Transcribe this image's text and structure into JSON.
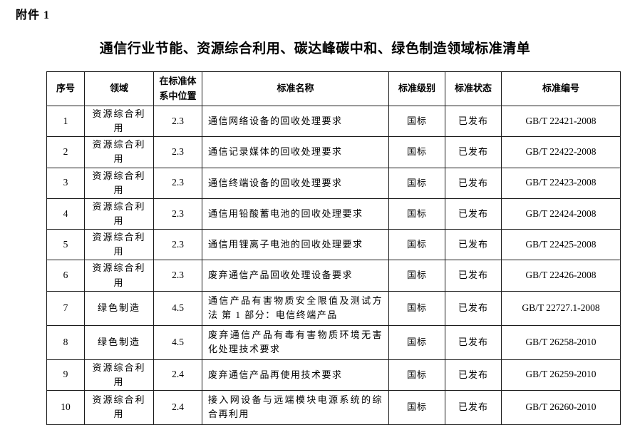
{
  "page": {
    "attachment_label": "附件 1",
    "title": "通信行业节能、资源综合利用、碳达峰碳中和、绿色制造领域标准清单"
  },
  "colors": {
    "background": "#ffffff",
    "text": "#000000",
    "table_border": "#1a1a1a"
  },
  "table": {
    "headers": [
      "序号",
      "领域",
      "在标准体系中位置",
      "标准名称",
      "标准级别",
      "标准状态",
      "标准编号"
    ],
    "rows": [
      {
        "no": "1",
        "field": "资源综合利用",
        "position": "2.3",
        "name": "通信网络设备的回收处理要求",
        "level": "国标",
        "status": "已发布",
        "code": "GB/T 22421-2008",
        "tall": false
      },
      {
        "no": "2",
        "field": "资源综合利用",
        "position": "2.3",
        "name": "通信记录媒体的回收处理要求",
        "level": "国标",
        "status": "已发布",
        "code": "GB/T 22422-2008",
        "tall": false
      },
      {
        "no": "3",
        "field": "资源综合利用",
        "position": "2.3",
        "name": "通信终端设备的回收处理要求",
        "level": "国标",
        "status": "已发布",
        "code": "GB/T 22423-2008",
        "tall": false
      },
      {
        "no": "4",
        "field": "资源综合利用",
        "position": "2.3",
        "name": "通信用铅酸蓄电池的回收处理要求",
        "level": "国标",
        "status": "已发布",
        "code": "GB/T 22424-2008",
        "tall": false
      },
      {
        "no": "5",
        "field": "资源综合利用",
        "position": "2.3",
        "name": "通信用锂离子电池的回收处理要求",
        "level": "国标",
        "status": "已发布",
        "code": "GB/T 22425-2008",
        "tall": false
      },
      {
        "no": "6",
        "field": "资源综合利用",
        "position": "2.3",
        "name": "废弃通信产品回收处理设备要求",
        "level": "国标",
        "status": "已发布",
        "code": "GB/T 22426-2008",
        "tall": false
      },
      {
        "no": "7",
        "field": "绿色制造",
        "position": "4.5",
        "name": "通信产品有害物质安全限值及测试方法 第 1 部分：电信终端产品",
        "level": "国标",
        "status": "已发布",
        "code": "GB/T 22727.1-2008",
        "tall": true
      },
      {
        "no": "8",
        "field": "绿色制造",
        "position": "4.5",
        "name": "废弃通信产品有毒有害物质环境无害化处理技术要求",
        "level": "国标",
        "status": "已发布",
        "code": "GB/T 26258-2010",
        "tall": true
      },
      {
        "no": "9",
        "field": "资源综合利用",
        "position": "2.4",
        "name": "废弃通信产品再使用技术要求",
        "level": "国标",
        "status": "已发布",
        "code": "GB/T 26259-2010",
        "tall": false
      },
      {
        "no": "10",
        "field": "资源综合利用",
        "position": "2.4",
        "name": "接入网设备与远端模块电源系统的综合再利用",
        "level": "国标",
        "status": "已发布",
        "code": "GB/T 26260-2010",
        "tall": true
      }
    ]
  }
}
